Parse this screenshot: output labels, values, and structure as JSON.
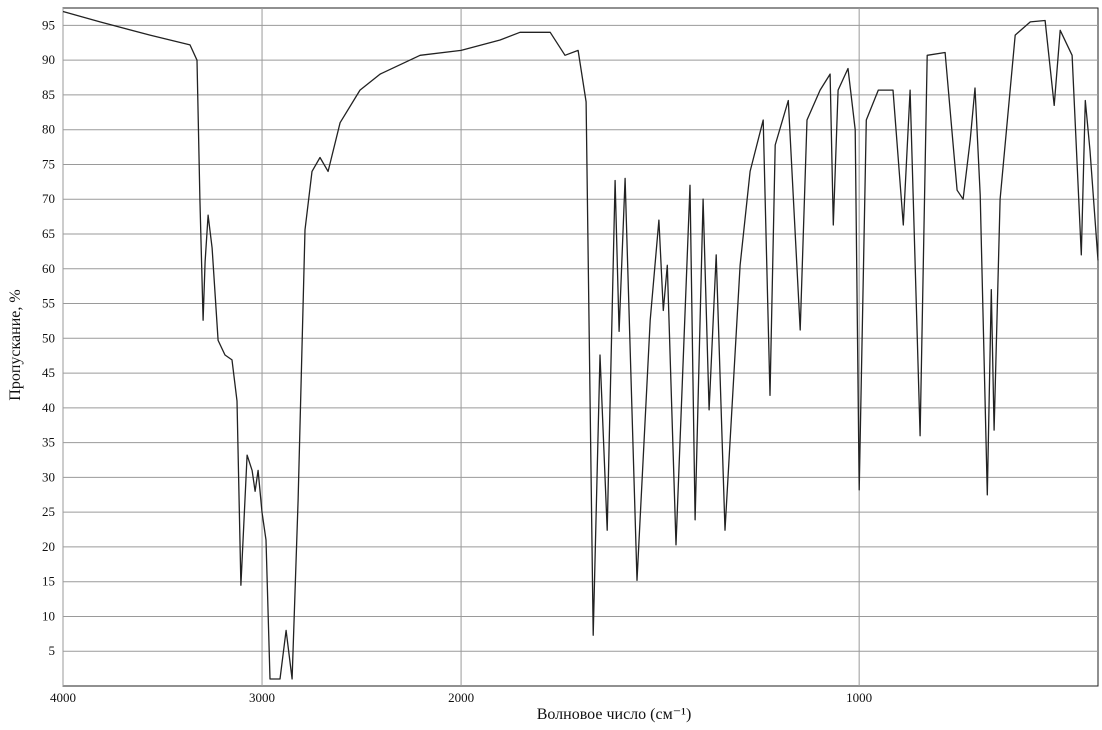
{
  "chart_data": {
    "type": "line",
    "xlabel": "Волновое число (см⁻¹)",
    "ylabel": "Пропускание, %",
    "xlim": [
      4000,
      400
    ],
    "x_scale_change": 2000,
    "ylim": [
      0,
      97.5
    ],
    "xticks": [
      4000,
      3000,
      2000,
      1000
    ],
    "yticks": [
      5,
      10,
      15,
      20,
      25,
      30,
      35,
      40,
      45,
      50,
      55,
      60,
      65,
      70,
      75,
      80,
      85,
      90,
      95
    ],
    "grid": true,
    "series": [
      {
        "color": "#222222",
        "x": [
          4000,
          3814,
          3563,
          3362,
          3327,
          3312,
          3296,
          3286,
          3271,
          3251,
          3221,
          3186,
          3151,
          3126,
          3106,
          3075,
          3050,
          3035,
          3020,
          3000,
          2980,
          2960,
          2910,
          2879,
          2849,
          2819,
          2784,
          2749,
          2709,
          2668,
          2608,
          2508,
          2407,
          2206,
          2000,
          1902,
          1852,
          1776,
          1739,
          1706,
          1686,
          1668,
          1651,
          1633,
          1613,
          1603,
          1588,
          1558,
          1525,
          1503,
          1492,
          1482,
          1460,
          1425,
          1412,
          1392,
          1377,
          1359,
          1337,
          1299,
          1274,
          1241,
          1224,
          1211,
          1178,
          1148,
          1131,
          1098,
          1073,
          1065,
          1053,
          1028,
          1010,
          1000,
          982,
          952,
          915,
          889,
          872,
          847,
          829,
          784,
          754,
          739,
          721,
          709,
          696,
          678,
          668,
          661,
          646,
          608,
          570,
          533,
          510,
          495,
          465,
          442,
          432,
          420,
          400
        ],
        "values": [
          97,
          95.5,
          93.6,
          92.2,
          90,
          70,
          52.6,
          61,
          67.7,
          63,
          49.7,
          47.6,
          46.9,
          41,
          14.5,
          33.2,
          31,
          28,
          31,
          25,
          21,
          1,
          1,
          8,
          1,
          26.7,
          65.6,
          74,
          76,
          74,
          81,
          85.7,
          88,
          90.7,
          91.4,
          92.9,
          94,
          94,
          90.7,
          91.4,
          84,
          7.3,
          47.6,
          22.4,
          72.7,
          51,
          73,
          15.2,
          52.6,
          67,
          54,
          60.5,
          20.3,
          72,
          23.9,
          70,
          39.7,
          62,
          22.4,
          60.5,
          74,
          81.4,
          41.8,
          77.8,
          84.2,
          51.2,
          81.4,
          85.7,
          88,
          66.3,
          85.7,
          88.8,
          80,
          28.2,
          81.4,
          85.7,
          85.7,
          66.3,
          85.7,
          36,
          90.7,
          91.1,
          71.3,
          70,
          78.5,
          86,
          70.6,
          27.5,
          57,
          36.8,
          70,
          93.6,
          95.5,
          95.7,
          83.5,
          94.3,
          90.7,
          62,
          84.2,
          77,
          61.2
        ]
      }
    ]
  }
}
